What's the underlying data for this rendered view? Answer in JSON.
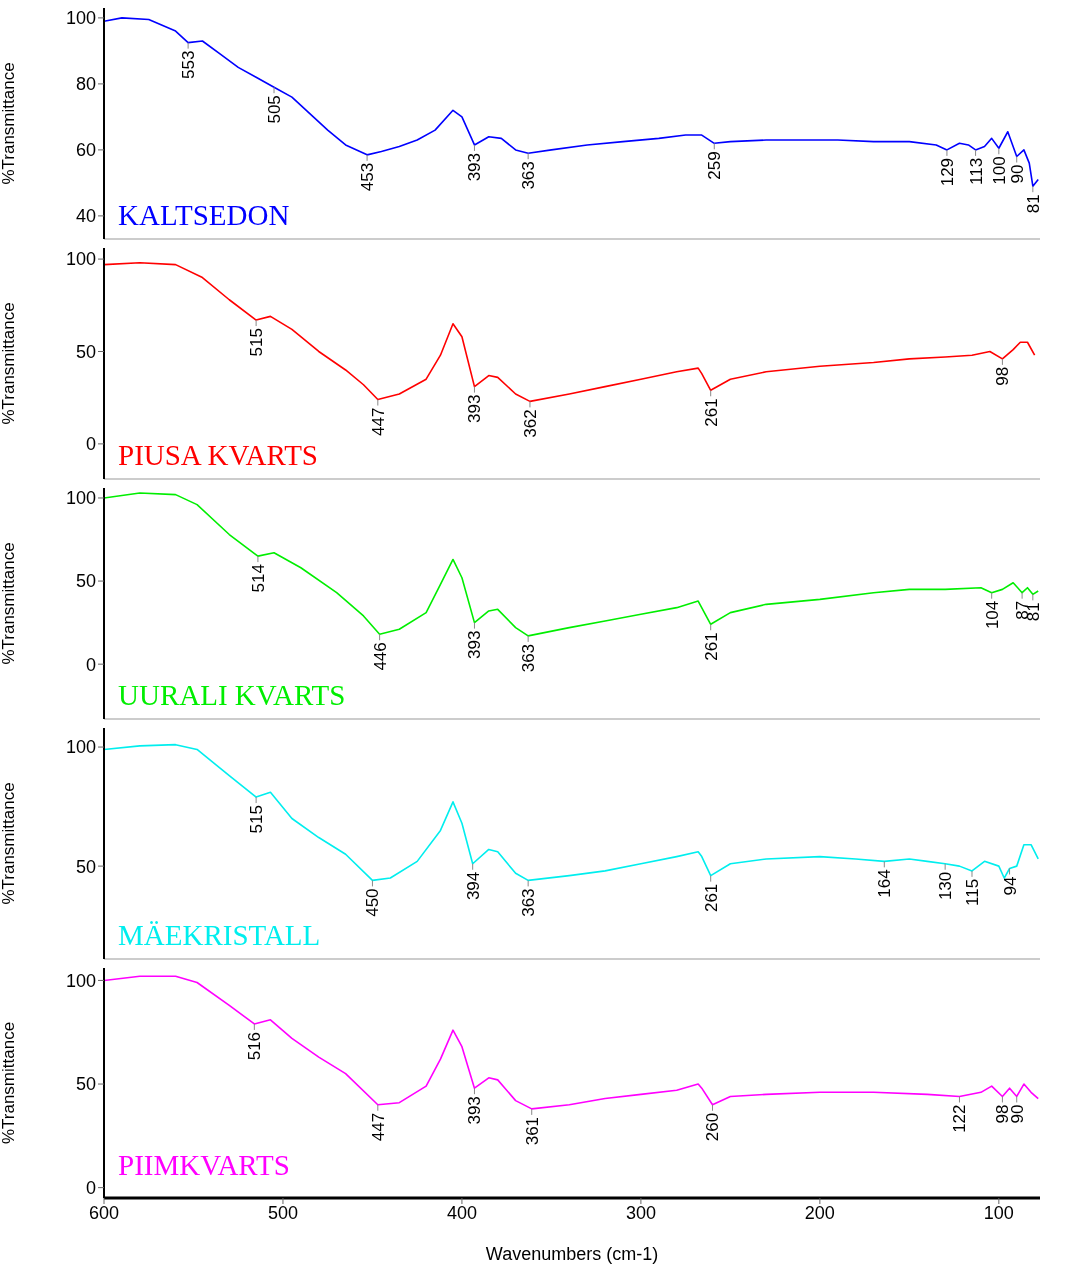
{
  "chart_data": [
    {
      "type": "line",
      "ylabel": "%Transmittance",
      "xlim": [
        600,
        77
      ],
      "xticks": [
        600,
        500,
        400,
        300,
        200,
        100
      ],
      "ylim": [
        33,
        103
      ],
      "yticks": [
        40,
        60,
        80,
        100
      ],
      "tick_labels": "y",
      "series": [
        {
          "name": "KALTSEDON",
          "color": "#0000ff",
          "x": [
            600,
            590,
            575,
            560,
            553,
            545,
            535,
            525,
            515,
            505,
            495,
            485,
            475,
            465,
            453,
            445,
            435,
            425,
            415,
            405,
            400,
            393,
            385,
            378,
            370,
            363,
            350,
            330,
            310,
            290,
            275,
            266,
            259,
            250,
            230,
            210,
            190,
            170,
            150,
            135,
            129,
            122,
            117,
            113,
            108,
            104,
            100,
            95,
            90,
            86,
            83,
            81,
            78
          ],
          "values": [
            99,
            100,
            99.5,
            96,
            92.5,
            93,
            89,
            85,
            82,
            79,
            76,
            71,
            66,
            61.5,
            58.5,
            59.5,
            61,
            63,
            66,
            72,
            70,
            61.5,
            64,
            63.5,
            60,
            59,
            60,
            61.5,
            62.5,
            63.5,
            64.5,
            64.5,
            62,
            62.5,
            63,
            63,
            63,
            62.5,
            62.5,
            61.5,
            60,
            62,
            61.5,
            60,
            61,
            63.5,
            60.5,
            65.5,
            58,
            60,
            56,
            49,
            51
          ]
        }
      ],
      "annotations": [
        {
          "text": "553",
          "x": 553,
          "y": 92.5
        },
        {
          "text": "505",
          "x": 505,
          "y": 79
        },
        {
          "text": "453",
          "x": 453,
          "y": 58.5
        },
        {
          "text": "393",
          "x": 393,
          "y": 61.5
        },
        {
          "text": "363",
          "x": 363,
          "y": 59
        },
        {
          "text": "259",
          "x": 259,
          "y": 62
        },
        {
          "text": "129",
          "x": 129,
          "y": 60
        },
        {
          "text": "113",
          "x": 113,
          "y": 60
        },
        {
          "text": "100",
          "x": 100,
          "y": 60.5
        },
        {
          "text": "90",
          "x": 90,
          "y": 58
        },
        {
          "text": "81",
          "x": 81,
          "y": 49
        }
      ]
    },
    {
      "type": "line",
      "ylabel": "%Transmittance",
      "xlim": [
        600,
        77
      ],
      "xticks": [
        600,
        500,
        400,
        300,
        200,
        100
      ],
      "ylim": [
        -19,
        106
      ],
      "yticks": [
        0,
        50,
        100
      ],
      "tick_labels": "y",
      "series": [
        {
          "name": "PIUSA KVARTS",
          "color": "#ff0000",
          "x": [
            600,
            580,
            560,
            545,
            530,
            515,
            507,
            495,
            480,
            465,
            455,
            447,
            435,
            420,
            412,
            405,
            400,
            393,
            385,
            380,
            370,
            362,
            340,
            320,
            300,
            280,
            268,
            266,
            261,
            250,
            230,
            200,
            170,
            150,
            130,
            115,
            105,
            98,
            92,
            88,
            84,
            80
          ],
          "values": [
            97,
            98,
            97,
            90,
            78,
            67,
            69,
            62,
            50,
            40,
            32,
            24,
            27,
            35,
            48,
            65,
            58,
            31,
            37,
            36,
            27,
            23,
            27,
            31,
            35,
            39,
            41,
            38,
            29,
            35,
            39,
            42,
            44,
            46,
            47,
            48,
            50,
            46,
            51,
            55,
            55,
            48
          ]
        }
      ],
      "annotations": [
        {
          "text": "515",
          "x": 515,
          "y": 67
        },
        {
          "text": "447",
          "x": 447,
          "y": 24
        },
        {
          "text": "393",
          "x": 393,
          "y": 31
        },
        {
          "text": "362",
          "x": 362,
          "y": 23
        },
        {
          "text": "261",
          "x": 261,
          "y": 29
        },
        {
          "text": "98",
          "x": 98,
          "y": 46
        }
      ]
    },
    {
      "type": "line",
      "ylabel": "%Transmittance",
      "xlim": [
        600,
        77
      ],
      "xticks": [
        600,
        500,
        400,
        300,
        200,
        100
      ],
      "ylim": [
        -33,
        106
      ],
      "yticks": [
        0,
        50,
        100
      ],
      "tick_labels": "y",
      "series": [
        {
          "name": "UURALI KVARTS",
          "color": "#00ee00",
          "x": [
            600,
            580,
            560,
            548,
            530,
            514,
            505,
            490,
            470,
            455,
            446,
            435,
            420,
            412,
            405,
            400,
            393,
            385,
            380,
            370,
            363,
            340,
            320,
            300,
            280,
            268,
            261,
            250,
            230,
            200,
            170,
            150,
            130,
            110,
            104,
            98,
            92,
            87,
            84,
            81,
            78
          ],
          "values": [
            100,
            103,
            102,
            96,
            78,
            65,
            67,
            58,
            43,
            29,
            18,
            21,
            31,
            48,
            63,
            52,
            25,
            32,
            33,
            22,
            17,
            22,
            26,
            30,
            34,
            38,
            24,
            31,
            36,
            39,
            43,
            45,
            45,
            46,
            43,
            45,
            49,
            43,
            46,
            42,
            44
          ]
        }
      ],
      "annotations": [
        {
          "text": "514",
          "x": 514,
          "y": 65
        },
        {
          "text": "446",
          "x": 446,
          "y": 18
        },
        {
          "text": "393",
          "x": 393,
          "y": 25
        },
        {
          "text": "363",
          "x": 363,
          "y": 17
        },
        {
          "text": "261",
          "x": 261,
          "y": 24
        },
        {
          "text": "104",
          "x": 104,
          "y": 43
        },
        {
          "text": "87",
          "x": 87,
          "y": 43
        },
        {
          "text": "81",
          "x": 81,
          "y": 42
        }
      ]
    },
    {
      "type": "line",
      "ylabel": "%Transmittance",
      "xlim": [
        600,
        77
      ],
      "xticks": [
        600,
        500,
        400,
        300,
        200,
        100
      ],
      "ylim": [
        11,
        108
      ],
      "yticks": [
        50,
        100
      ],
      "tick_labels": "y",
      "series": [
        {
          "name": "MÄEKRISTALL",
          "color": "#00eeee",
          "x": [
            600,
            580,
            560,
            548,
            530,
            515,
            507,
            495,
            480,
            465,
            450,
            440,
            425,
            412,
            405,
            400,
            394,
            385,
            380,
            370,
            363,
            340,
            320,
            300,
            280,
            268,
            266,
            261,
            250,
            230,
            200,
            180,
            164,
            150,
            140,
            130,
            122,
            115,
            108,
            100,
            97,
            94,
            90,
            86,
            82,
            78
          ],
          "values": [
            99,
            100.5,
            101,
            99,
            88,
            79,
            81,
            70,
            62,
            55,
            44,
            45,
            52,
            65,
            77,
            68,
            51,
            57,
            56,
            47,
            44,
            46,
            48,
            51,
            54,
            56,
            54,
            46,
            51,
            53,
            54,
            53,
            52,
            53,
            52,
            51,
            50,
            48,
            52,
            50,
            45,
            49,
            50,
            59,
            59,
            53
          ]
        }
      ],
      "annotations": [
        {
          "text": "515",
          "x": 515,
          "y": 79
        },
        {
          "text": "450",
          "x": 450,
          "y": 44
        },
        {
          "text": "394",
          "x": 394,
          "y": 51
        },
        {
          "text": "363",
          "x": 363,
          "y": 44
        },
        {
          "text": "261",
          "x": 261,
          "y": 46
        },
        {
          "text": "164",
          "x": 164,
          "y": 52
        },
        {
          "text": "130",
          "x": 130,
          "y": 51
        },
        {
          "text": "115",
          "x": 115,
          "y": 48
        },
        {
          "text": "94",
          "x": 94,
          "y": 49
        }
      ]
    },
    {
      "type": "line",
      "ylabel": "%Transmittance",
      "xlabel": "Wavenumbers (cm-1)",
      "xlim": [
        600,
        77
      ],
      "xticks": [
        600,
        500,
        400,
        300,
        200,
        100
      ],
      "ylim": [
        -5,
        106
      ],
      "yticks": [
        0,
        50,
        100
      ],
      "series": [
        {
          "name": "PIIMKVARTS",
          "color": "#ff00ff",
          "x": [
            600,
            580,
            560,
            548,
            530,
            516,
            507,
            495,
            480,
            465,
            447,
            435,
            420,
            412,
            405,
            400,
            393,
            385,
            380,
            370,
            361,
            340,
            320,
            300,
            280,
            268,
            266,
            260,
            250,
            230,
            200,
            170,
            140,
            122,
            110,
            104,
            98,
            94,
            90,
            86,
            82,
            78
          ],
          "values": [
            100,
            102,
            102,
            99,
            88,
            79,
            81,
            72,
            63,
            55,
            40,
            41,
            49,
            62,
            76,
            68,
            48,
            53,
            52,
            42,
            38,
            40,
            43,
            45,
            47,
            50,
            48,
            40,
            44,
            45,
            46,
            46,
            45,
            44,
            46,
            49,
            44,
            48,
            44,
            50,
            46,
            43
          ]
        }
      ],
      "annotations": [
        {
          "text": "516",
          "x": 516,
          "y": 79
        },
        {
          "text": "447",
          "x": 447,
          "y": 40
        },
        {
          "text": "393",
          "x": 393,
          "y": 48
        },
        {
          "text": "361",
          "x": 361,
          "y": 38
        },
        {
          "text": "260",
          "x": 260,
          "y": 40
        },
        {
          "text": "122",
          "x": 122,
          "y": 44
        },
        {
          "text": "98",
          "x": 98,
          "y": 44
        },
        {
          "text": "90",
          "x": 90,
          "y": 44
        }
      ]
    }
  ]
}
